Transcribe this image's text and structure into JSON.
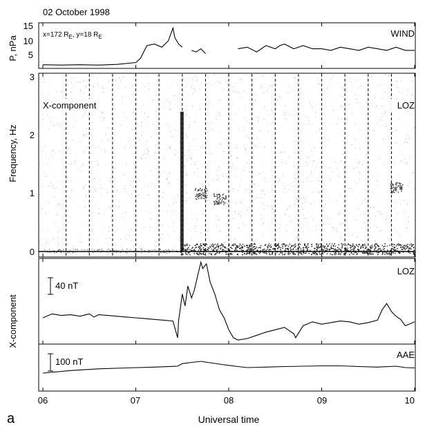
{
  "figure": {
    "date_title": "02 October 1998",
    "panel_letter": "a",
    "xlabel": "Universal time",
    "x_ticks": [
      "06",
      "07",
      "08",
      "09",
      "10"
    ],
    "x_range_hours": [
      6,
      10
    ]
  },
  "chart_data": [
    {
      "type": "line",
      "panel": "pressure",
      "ylabel": "P, nPa",
      "y_ticks": [
        "15",
        "10",
        "5"
      ],
      "ylim": [
        2,
        15
      ],
      "station_label": "WIND",
      "position_note": "x=172 R_E, y=18 R_E",
      "series": [
        {
          "name": "WIND",
          "x": [
            6.0,
            6.2,
            6.4,
            6.6,
            6.8,
            7.0,
            7.05,
            7.12,
            7.2,
            7.28,
            7.35,
            7.4,
            7.42,
            7.46,
            7.5,
            7.55,
            7.6,
            7.65,
            7.7,
            7.75,
            7.8,
            7.9,
            8.0,
            8.1,
            8.2,
            8.3,
            8.4,
            8.5,
            8.55,
            8.6,
            8.7,
            8.8,
            8.9,
            9.0,
            9.1,
            9.2,
            9.3,
            9.4,
            9.5,
            9.6,
            9.7,
            9.8,
            9.9,
            10.0
          ],
          "values": [
            2.5,
            2.4,
            2.5,
            2.4,
            2.6,
            3.2,
            4.5,
            8.5,
            9,
            8,
            10,
            14,
            11,
            9,
            8,
            null,
            7,
            6.5,
            7.5,
            6,
            null,
            7,
            null,
            7.5,
            8,
            6.5,
            8.5,
            7.5,
            8.5,
            9,
            7.5,
            8.5,
            7.5,
            7.5,
            7,
            8,
            7.5,
            7,
            8,
            7.5,
            7,
            8,
            7,
            7
          ]
        }
      ],
      "grid": false
    },
    {
      "type": "heatmap",
      "panel": "spectrogram",
      "ylabel": "Frequency, Hz",
      "y_ticks": [
        "0",
        "1",
        "2",
        "3"
      ],
      "ylim": [
        0,
        3
      ],
      "component_label": "X-component",
      "station_label": "LOZ",
      "dashed_markers_hours": [
        6.25,
        6.5,
        6.75,
        7.0,
        7.25,
        7.5,
        7.75,
        8.0,
        8.25,
        8.5,
        8.75,
        9.0,
        9.25,
        9.5,
        9.75
      ],
      "features": [
        {
          "x": 7.5,
          "f_low": 0.0,
          "f_high": 2.4,
          "intensity": "strong"
        },
        {
          "x": 7.7,
          "f": 1.0,
          "intensity": "moderate"
        },
        {
          "x": 7.9,
          "f": 0.9,
          "intensity": "moderate"
        },
        {
          "x": 9.8,
          "f": 1.1,
          "intensity": "moderate"
        }
      ],
      "low_freq_band": "strong activity below 0.1 Hz after 07.5 UT"
    },
    {
      "type": "line",
      "panel": "magnetogram",
      "ylabel": "X-component",
      "scale_bar_label": "40 nT",
      "station_label": "LOZ",
      "series": [
        {
          "name": "LOZ",
          "x": [
            6.0,
            6.1,
            6.2,
            6.3,
            6.4,
            6.5,
            6.55,
            6.6,
            6.7,
            6.8,
            6.9,
            7.0,
            7.1,
            7.2,
            7.3,
            7.4,
            7.45,
            7.46,
            7.5,
            7.53,
            7.56,
            7.6,
            7.63,
            7.67,
            7.7,
            7.72,
            7.76,
            7.8,
            7.85,
            7.9,
            7.95,
            8.0,
            8.05,
            8.1,
            8.2,
            8.3,
            8.4,
            8.5,
            8.6,
            8.7,
            8.72,
            8.8,
            8.9,
            9.0,
            9.1,
            9.2,
            9.3,
            9.4,
            9.5,
            9.6,
            9.65,
            9.7,
            9.75,
            9.8,
            9.85,
            9.9,
            10.0
          ],
          "values": [
            0,
            5,
            3,
            4,
            2,
            5,
            1,
            4,
            3,
            2,
            1,
            0,
            -1,
            -2,
            -3,
            -4,
            -25,
            -4,
            30,
            15,
            40,
            25,
            35,
            55,
            70,
            62,
            68,
            45,
            30,
            10,
            0,
            -15,
            -25,
            -28,
            -26,
            -22,
            -18,
            -15,
            -12,
            -20,
            -25,
            -10,
            -5,
            -8,
            -6,
            -4,
            -5,
            -8,
            -6,
            -3,
            10,
            18,
            8,
            2,
            -2,
            -10,
            -5
          ]
        }
      ],
      "grid": false
    },
    {
      "type": "line",
      "panel": "auroral_electrojet",
      "scale_bar_label": "100 nT",
      "station_label": "AAE",
      "series": [
        {
          "name": "AAE",
          "x": [
            6.0,
            6.3,
            6.6,
            6.9,
            7.2,
            7.45,
            7.5,
            7.6,
            7.7,
            7.8,
            7.9,
            8.0,
            8.1,
            8.2,
            8.4,
            8.6,
            8.8,
            9.0,
            9.2,
            9.4,
            9.6,
            9.8,
            9.9,
            10.0
          ],
          "values": [
            -60,
            -45,
            -35,
            -30,
            -25,
            -20,
            -5,
            2,
            8,
            0,
            -8,
            -15,
            -22,
            -28,
            -25,
            -22,
            -20,
            -18,
            -18,
            -22,
            -25,
            -20,
            -28,
            -30
          ]
        }
      ],
      "grid": false
    }
  ]
}
